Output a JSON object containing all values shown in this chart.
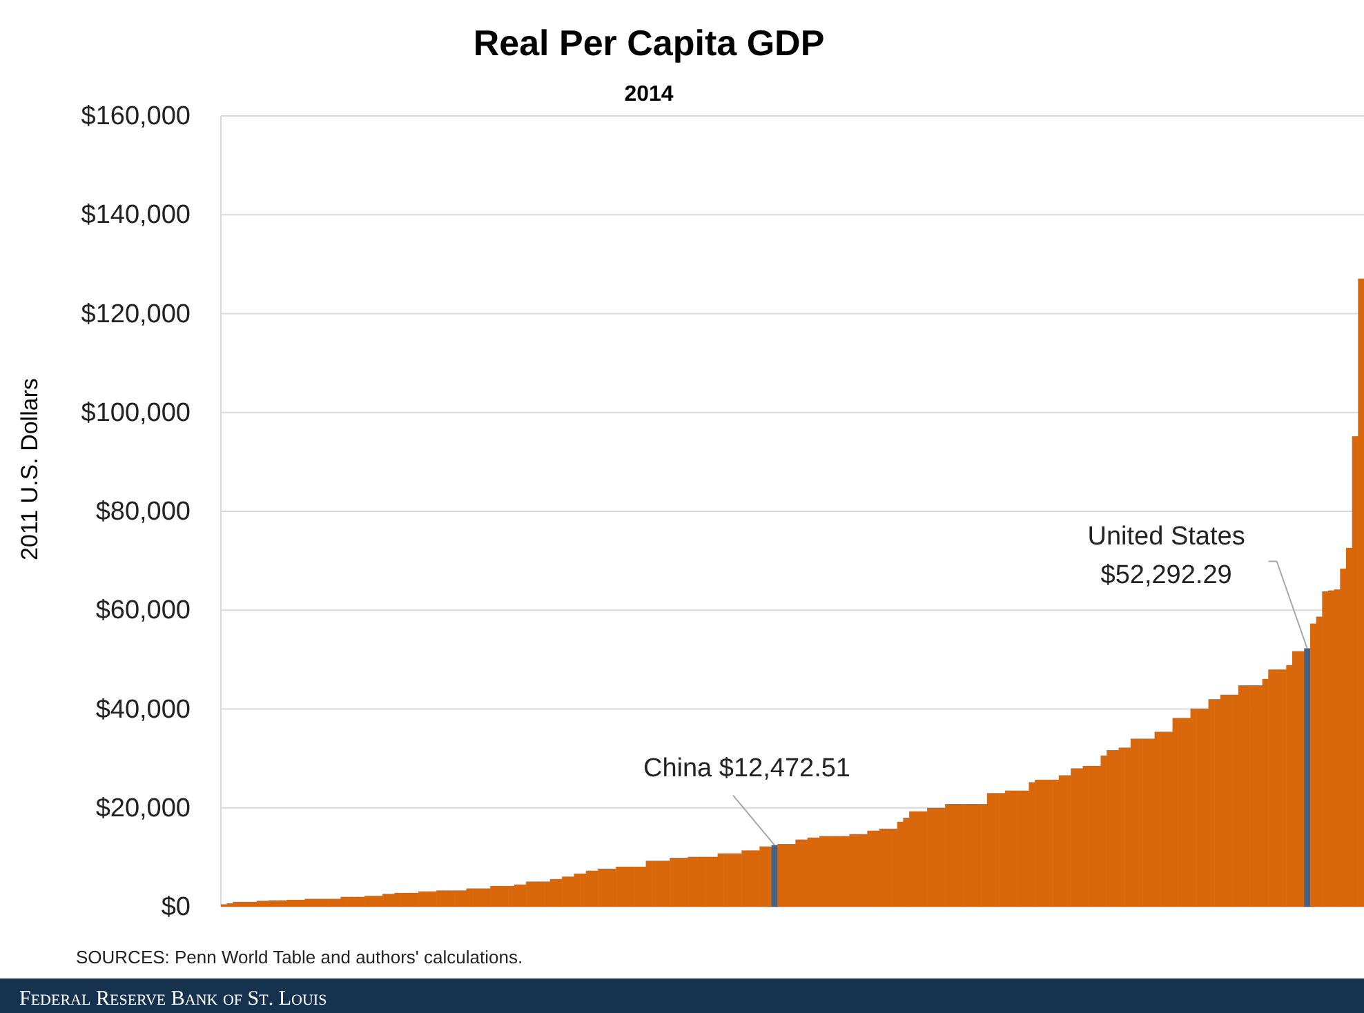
{
  "chart_data": {
    "type": "bar",
    "title": "Real Per Capita GDP",
    "subtitle": "2014",
    "ylabel": "2011 U.S. Dollars",
    "categories": [
      null,
      null,
      null,
      null,
      null,
      null,
      null,
      null,
      null,
      null,
      null,
      null,
      null,
      null,
      null,
      null,
      null,
      null,
      null,
      null,
      null,
      null,
      null,
      null,
      null,
      null,
      null,
      null,
      null,
      null,
      null,
      null,
      null,
      null,
      null,
      null,
      null,
      null,
      null,
      null,
      null,
      null,
      null,
      null,
      null,
      null,
      null,
      null,
      null,
      null,
      null,
      null,
      null,
      null,
      null,
      null,
      null,
      null,
      null,
      null,
      null,
      null,
      null,
      null,
      null,
      null,
      null,
      null,
      null,
      null,
      null,
      null,
      null,
      null,
      null,
      null,
      null,
      null,
      null,
      null,
      null,
      null,
      null,
      null,
      null,
      null,
      null,
      null,
      null,
      null,
      null,
      null,
      null,
      null,
      null,
      null,
      null,
      null,
      null,
      null,
      null,
      null,
      null,
      null,
      null,
      null,
      null,
      null,
      null,
      null,
      null,
      null,
      null,
      null,
      null,
      null,
      null,
      null,
      null,
      null,
      null,
      null,
      null,
      null,
      null,
      null,
      null,
      null,
      null,
      null,
      null,
      null,
      null,
      null,
      null,
      null,
      null,
      null,
      null,
      null,
      null,
      null,
      null,
      null,
      null,
      null,
      null,
      null,
      null,
      null,
      null,
      null,
      null,
      null,
      null,
      null,
      null,
      null,
      null,
      null,
      null,
      null,
      null,
      null,
      null,
      null,
      null,
      null,
      null,
      null,
      null,
      null,
      null,
      null,
      null,
      null,
      null,
      null,
      null,
      null,
      null,
      null,
      null,
      null,
      null,
      null,
      null,
      null,
      null,
      null,
      null
    ],
    "values": [
      500,
      700,
      1000,
      1000,
      1000,
      1000,
      1200,
      1200,
      1300,
      1300,
      1300,
      1400,
      1400,
      1400,
      1600,
      1600,
      1600,
      1600,
      1600,
      1600,
      2000,
      2000,
      2000,
      2000,
      2200,
      2200,
      2200,
      2600,
      2600,
      2800,
      2800,
      2800,
      2800,
      3100,
      3100,
      3100,
      3300,
      3300,
      3300,
      3300,
      3300,
      3700,
      3700,
      3700,
      3700,
      4200,
      4200,
      4200,
      4200,
      4500,
      4500,
      5100,
      5100,
      5100,
      5100,
      5600,
      5600,
      6100,
      6100,
      6700,
      6700,
      7300,
      7300,
      7700,
      7700,
      7700,
      8100,
      8100,
      8100,
      8100,
      8100,
      9300,
      9300,
      9300,
      9300,
      9900,
      9900,
      9900,
      10100,
      10100,
      10100,
      10100,
      10100,
      10800,
      10800,
      10800,
      10800,
      11400,
      11400,
      11400,
      12200,
      12200,
      12472.51,
      12700,
      12700,
      12700,
      13600,
      13600,
      14000,
      14000,
      14300,
      14300,
      14300,
      14300,
      14300,
      14700,
      14700,
      14700,
      15400,
      15400,
      15800,
      15800,
      15800,
      17200,
      18000,
      19300,
      19300,
      19300,
      20000,
      20000,
      20000,
      20800,
      20800,
      20800,
      20800,
      20800,
      20800,
      20800,
      23000,
      23000,
      23000,
      23500,
      23500,
      23500,
      23500,
      25200,
      25700,
      25700,
      25700,
      25700,
      26600,
      26600,
      28000,
      28000,
      28500,
      28500,
      28500,
      30600,
      31700,
      31700,
      32200,
      32200,
      34000,
      34000,
      34000,
      34000,
      35400,
      35400,
      35400,
      38200,
      38200,
      38200,
      40100,
      40100,
      40100,
      42000,
      42000,
      42900,
      42900,
      42900,
      44800,
      44800,
      44800,
      44800,
      46100,
      48000,
      48000,
      48000,
      48900,
      51700,
      51700,
      52292.29,
      57300,
      58700,
      63800,
      64000,
      64200,
      68400,
      72600,
      95200,
      127100
    ],
    "colors": [
      "#d9670b",
      "#d9670b",
      "#d9670b",
      "#d9670b",
      "#d9670b",
      "#d9670b",
      "#d9670b",
      "#d9670b",
      "#d9670b",
      "#d9670b",
      "#d9670b",
      "#d9670b",
      "#d9670b",
      "#d9670b",
      "#d9670b",
      "#d9670b",
      "#d9670b",
      "#d9670b",
      "#d9670b",
      "#d9670b",
      "#d9670b",
      "#d9670b",
      "#d9670b",
      "#d9670b",
      "#d9670b",
      "#d9670b",
      "#d9670b",
      "#d9670b",
      "#d9670b",
      "#d9670b",
      "#d9670b",
      "#d9670b",
      "#d9670b",
      "#d9670b",
      "#d9670b",
      "#d9670b",
      "#d9670b",
      "#d9670b",
      "#d9670b",
      "#d9670b",
      "#d9670b",
      "#d9670b",
      "#d9670b",
      "#d9670b",
      "#d9670b",
      "#d9670b",
      "#d9670b",
      "#d9670b",
      "#d9670b",
      "#d9670b",
      "#d9670b",
      "#d9670b",
      "#d9670b",
      "#d9670b",
      "#d9670b",
      "#d9670b",
      "#d9670b",
      "#d9670b",
      "#d9670b",
      "#d9670b",
      "#d9670b",
      "#d9670b",
      "#d9670b",
      "#d9670b",
      "#d9670b",
      "#d9670b",
      "#d9670b",
      "#d9670b",
      "#d9670b",
      "#d9670b",
      "#d9670b",
      "#d9670b",
      "#d9670b",
      "#d9670b",
      "#d9670b",
      "#d9670b",
      "#d9670b",
      "#d9670b",
      "#d9670b",
      "#d9670b",
      "#d9670b",
      "#d9670b",
      "#d9670b",
      "#d9670b",
      "#d9670b",
      "#d9670b",
      "#d9670b",
      "#d9670b",
      "#d9670b",
      "#d9670b",
      "#d9670b",
      "#d9670b",
      "#44628a",
      "#d9670b",
      "#d9670b",
      "#d9670b",
      "#d9670b",
      "#d9670b",
      "#d9670b",
      "#d9670b",
      "#d9670b",
      "#d9670b",
      "#d9670b",
      "#d9670b",
      "#d9670b",
      "#d9670b",
      "#d9670b",
      "#d9670b",
      "#d9670b",
      "#d9670b",
      "#d9670b",
      "#d9670b",
      "#d9670b",
      "#d9670b",
      "#d9670b",
      "#d9670b",
      "#d9670b",
      "#d9670b",
      "#d9670b",
      "#d9670b",
      "#d9670b",
      "#d9670b",
      "#d9670b",
      "#d9670b",
      "#d9670b",
      "#d9670b",
      "#d9670b",
      "#d9670b",
      "#d9670b",
      "#d9670b",
      "#d9670b",
      "#d9670b",
      "#d9670b",
      "#d9670b",
      "#d9670b",
      "#d9670b",
      "#d9670b",
      "#d9670b",
      "#d9670b",
      "#d9670b",
      "#d9670b",
      "#d9670b",
      "#d9670b",
      "#d9670b",
      "#d9670b",
      "#d9670b",
      "#d9670b",
      "#d9670b",
      "#d9670b",
      "#d9670b",
      "#d9670b",
      "#d9670b",
      "#d9670b",
      "#d9670b",
      "#d9670b",
      "#d9670b",
      "#d9670b",
      "#d9670b",
      "#d9670b",
      "#d9670b",
      "#d9670b",
      "#d9670b",
      "#d9670b",
      "#d9670b",
      "#d9670b",
      "#d9670b",
      "#d9670b",
      "#d9670b",
      "#d9670b",
      "#d9670b",
      "#d9670b",
      "#d9670b",
      "#d9670b",
      "#d9670b",
      "#d9670b",
      "#d9670b",
      "#d9670b",
      "#d9670b",
      "#d9670b",
      "#d9670b",
      "#d9670b",
      "#44628a",
      "#d9670b",
      "#d9670b",
      "#d9670b",
      "#d9670b",
      "#d9670b",
      "#d9670b",
      "#d9670b",
      "#d9670b",
      "#d9670b"
    ],
    "ylim": [
      0,
      160000
    ],
    "yticks": [
      {
        "value": 0,
        "label": "$0"
      },
      {
        "value": 20000,
        "label": "$20,000"
      },
      {
        "value": 40000,
        "label": "$40,000"
      },
      {
        "value": 60000,
        "label": "$60,000"
      },
      {
        "value": 80000,
        "label": "$80,000"
      },
      {
        "value": 100000,
        "label": "$100,000"
      },
      {
        "value": 120000,
        "label": "$120,000"
      },
      {
        "value": 140000,
        "label": "$140,000"
      },
      {
        "value": 160000,
        "label": "$160,000"
      }
    ],
    "grid": "y",
    "tick_labels": "y",
    "annotations": [
      {
        "text": "China $12,472.51",
        "y": 12472.51
      },
      "United States\n$52,292.29",
      "SOURCES: Penn World Table and authors' calculations.",
      "Federal Reserve Bank of St. Louis"
    ]
  }
}
